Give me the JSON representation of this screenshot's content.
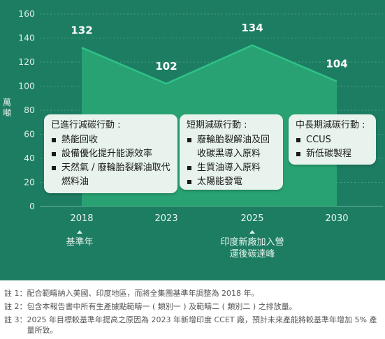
{
  "chart_data": {
    "type": "area",
    "ylabel": "萬噸",
    "ylim": [
      0,
      160
    ],
    "yticks": [
      0,
      20,
      40,
      60,
      80,
      100,
      120,
      140,
      160
    ],
    "categories": [
      "2018",
      "2023",
      "2025",
      "2030"
    ],
    "values": [
      132,
      102,
      134,
      104
    ],
    "data_labels": [
      "132",
      "102",
      "134",
      "104"
    ],
    "grid": true,
    "colors": {
      "panel": "#1d7d62",
      "area": "#2aa676",
      "line": "#2fc287",
      "grid": "#5ea88e"
    },
    "boxes": [
      {
        "title": "已進行減碳行動 :",
        "items": [
          "熱能回收",
          "設備優化提升能源效率",
          "天然氣 / 廢輪胎裂解油取代燃料油"
        ]
      },
      {
        "title": "短期減碳行動 :",
        "items": [
          "廢輪胎裂解油及回收碳黑導入原料",
          "生質油導入原料",
          "太陽能發電"
        ]
      },
      {
        "title": "中長期減碳行動 :",
        "items": [
          "CCUS",
          "新低碳製程"
        ]
      }
    ],
    "annotations": [
      {
        "category": "2018",
        "text": "基準年"
      },
      {
        "category": "2025",
        "text": "印度新廠加入營運後碳達峰"
      }
    ]
  },
  "notes": [
    {
      "label": "註 1：",
      "text": "配合範疇納入美國、印度地區，而將全集團基準年調整為 2018 年。"
    },
    {
      "label": "註 2：",
      "text": "包含本報告書中所有生產據點範疇一 ( 類別一 ) 及範疇二 ( 類別二 ) 之排放量。"
    },
    {
      "label": "註 3：",
      "text": "2025 年目標較基準年提高之原因為 2023 年新增印度 CCET 廠，預計未來產能將較基準年增加 5% 產量所致。"
    }
  ]
}
